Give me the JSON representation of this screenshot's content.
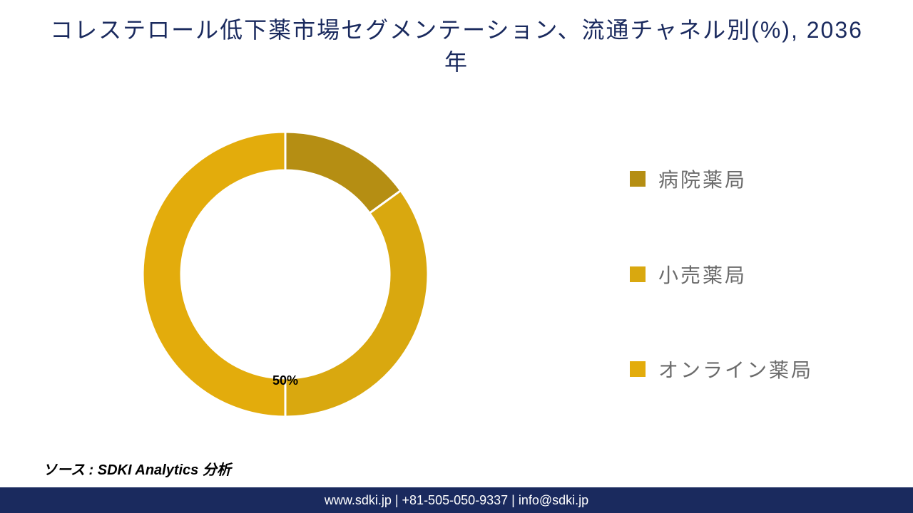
{
  "title": "コレステロール低下薬市場セグメンテーション、流通チャネル別(%), 2036年",
  "chart": {
    "type": "donut",
    "segments": [
      {
        "label": "病院薬局",
        "value": 15,
        "color": "#b58e13"
      },
      {
        "label": "小売薬局",
        "value": 35,
        "color": "#d9a80f"
      },
      {
        "label": "オンライン薬局",
        "value": 50,
        "color": "#e3ac0c"
      }
    ],
    "separator_color": "#ffffff",
    "separator_width": 3,
    "inner_radius_ratio": 0.73,
    "outer_radius": 200,
    "data_label": "50%",
    "data_label_color": "#000000",
    "data_label_fontsize": 18,
    "background_color": "#ffffff"
  },
  "legend": {
    "items": [
      {
        "label": "病院薬局",
        "color": "#b58e13"
      },
      {
        "label": "小売薬局",
        "color": "#d9a80f"
      },
      {
        "label": "オンライン薬局",
        "color": "#e3ac0c"
      }
    ],
    "label_fontsize": 28,
    "label_color": "#6b6b6b",
    "swatch_size": 22
  },
  "source": "ソース : SDKI Analytics 分析",
  "footer": {
    "text": "www.sdki.jp | +81-505-050-9337 | info@sdki.jp",
    "background_color": "#1a2a5e",
    "text_color": "#ffffff"
  },
  "colors": {
    "title_color": "#1a2a5e",
    "background": "#ffffff"
  }
}
